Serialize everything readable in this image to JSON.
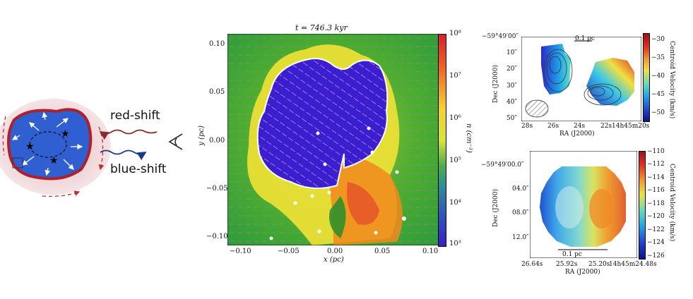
{
  "schematic": {
    "red_label": "red-shift",
    "blue_label": "blue-shift"
  },
  "simulation": {
    "title": "t = 746.3 kyr",
    "xlabel": "x (pc)",
    "ylabel": "y (pc)",
    "x_ticks": [
      "−0.10",
      "−0.05",
      "0.00",
      "0.05",
      "0.10"
    ],
    "y_ticks": [
      "0.10",
      "0.05",
      "0.00",
      "−0.05",
      "−0.10"
    ],
    "colorbar_label": "n (cm⁻³)",
    "colorbar_ticks": [
      "10⁸",
      "10⁷",
      "10⁶",
      "10⁵",
      "10⁴",
      "10³"
    ],
    "colors": {
      "bubble": "#3a1fd0",
      "ambient": "#38a52e",
      "dense": "#f07a1a"
    }
  },
  "obs_top": {
    "ylabel": "Dec (J2000)",
    "xlabel": "RA (J2000)",
    "scale_bar": "0.1 pc",
    "y_ticks": [
      "−59°49′00″",
      "10″",
      "20″",
      "30″",
      "40″",
      "50″"
    ],
    "x_ticks": [
      "28s",
      "26s",
      "24s",
      "22s",
      "14h45m20s"
    ],
    "colorbar_label": "Centroid Velocity (km/s)",
    "colorbar_ticks": [
      "−30",
      "−35",
      "−40",
      "−45",
      "−50"
    ]
  },
  "obs_bottom": {
    "ylabel": "Dec (J2000)",
    "xlabel": "RA (J2000)",
    "scale_bar": "0.1 pc",
    "y_ticks": [
      "−59°49′00.0″",
      "04.0″",
      "08.0″",
      "12.0″"
    ],
    "x_ticks": [
      "26.64s",
      "25.92s",
      "25.20s",
      "14h45m24.48s"
    ],
    "colorbar_label": "Centroid Velocity (km/s)",
    "colorbar_ticks": [
      "−110",
      "−112",
      "−114",
      "−116",
      "−118",
      "−120",
      "−122",
      "−124",
      "−126"
    ]
  }
}
